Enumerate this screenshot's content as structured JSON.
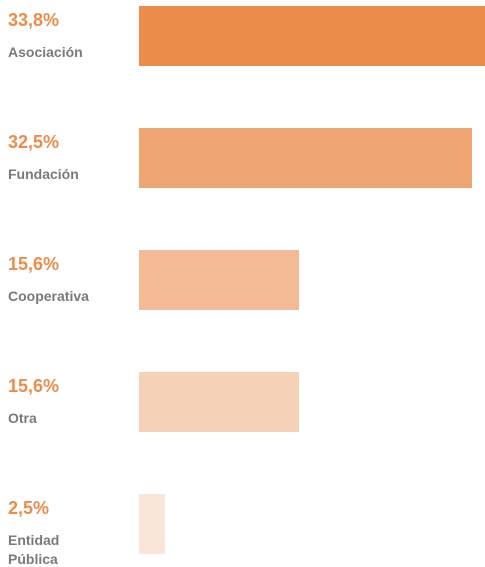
{
  "chart_data": {
    "type": "bar",
    "orientation": "horizontal",
    "categories": [
      "Asociación",
      "Fundación",
      "Cooperativa",
      "Otra",
      "Entidad Pública"
    ],
    "values": [
      33.8,
      32.5,
      15.6,
      15.6,
      2.5
    ],
    "value_labels": [
      "33,8%",
      "32,5%",
      "15,6%",
      "15,6%",
      "2,5%"
    ],
    "colors": [
      "#eb8c4a",
      "#efa571",
      "#f2bb93",
      "#f6d3b8",
      "#fae6d9"
    ]
  }
}
